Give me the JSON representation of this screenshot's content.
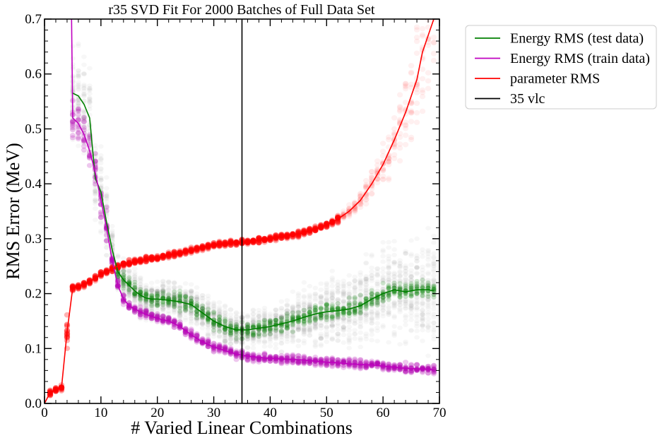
{
  "chart_data": {
    "type": "line",
    "title": "r35 SVD Fit For 2000 Batches of Full Data Set",
    "xlabel": "# Varied Linear Combinations",
    "ylabel": "RMS Error (MeV)",
    "xlim": [
      0,
      70
    ],
    "ylim": [
      0,
      0.7
    ],
    "xticks": [
      0,
      10,
      20,
      30,
      40,
      50,
      60,
      70
    ],
    "yticks": [
      0.0,
      0.1,
      0.2,
      0.3,
      0.4,
      0.5,
      0.6,
      0.7
    ],
    "xtick_labels": [
      "0",
      "10",
      "20",
      "30",
      "40",
      "50",
      "60",
      "70"
    ],
    "ytick_labels": [
      "0.0",
      "0.1",
      "0.2",
      "0.3",
      "0.4",
      "0.5",
      "0.6",
      "0.7"
    ],
    "grid": false,
    "legend_position": "outside-top-right",
    "vline": {
      "x": 35,
      "name": "35 vlc",
      "color": "#000000"
    },
    "series": [
      {
        "name": "Energy RMS (test data)",
        "color": "#008000",
        "x": [
          5,
          6,
          7,
          8,
          9,
          10,
          11,
          12,
          13,
          14,
          15,
          16,
          17,
          18,
          19,
          20,
          22,
          24,
          26,
          28,
          30,
          32,
          34,
          36,
          38,
          40,
          42,
          44,
          46,
          48,
          50,
          52,
          54,
          56,
          58,
          60,
          62,
          64,
          66,
          68,
          69
        ],
        "y": [
          0.565,
          0.56,
          0.545,
          0.52,
          0.41,
          0.385,
          0.33,
          0.28,
          0.24,
          0.225,
          0.215,
          0.205,
          0.197,
          0.192,
          0.19,
          0.19,
          0.188,
          0.185,
          0.18,
          0.165,
          0.15,
          0.14,
          0.134,
          0.134,
          0.137,
          0.14,
          0.145,
          0.15,
          0.157,
          0.163,
          0.167,
          0.169,
          0.172,
          0.178,
          0.19,
          0.2,
          0.207,
          0.203,
          0.207,
          0.207,
          0.205
        ]
      },
      {
        "name": "Energy RMS (train data)",
        "color": "#bf00bf",
        "x": [
          4.8,
          5,
          6,
          7,
          8,
          9,
          10,
          11,
          12,
          13,
          14,
          15,
          16,
          18,
          20,
          22,
          24,
          26,
          28,
          30,
          32,
          34,
          36,
          38,
          40,
          42,
          44,
          46,
          48,
          50,
          52,
          54,
          56,
          58,
          60,
          62,
          64,
          66,
          68,
          69
        ],
        "y": [
          0.7,
          0.52,
          0.51,
          0.49,
          0.46,
          0.42,
          0.37,
          0.32,
          0.26,
          0.215,
          0.19,
          0.178,
          0.172,
          0.162,
          0.155,
          0.15,
          0.14,
          0.125,
          0.112,
          0.103,
          0.096,
          0.09,
          0.086,
          0.084,
          0.082,
          0.081,
          0.08,
          0.079,
          0.077,
          0.075,
          0.074,
          0.072,
          0.071,
          0.07,
          0.068,
          0.066,
          0.064,
          0.063,
          0.062,
          0.061
        ]
      },
      {
        "name": "parameter RMS",
        "color": "#ff0000",
        "x": [
          0,
          1,
          2,
          3,
          4,
          5,
          6,
          7,
          8,
          9,
          10,
          11,
          12,
          13,
          14,
          15,
          16,
          18,
          20,
          22,
          24,
          26,
          28,
          30,
          32,
          34,
          36,
          38,
          40,
          42,
          44,
          46,
          48,
          50,
          52,
          54,
          56,
          58,
          60,
          62,
          64,
          66,
          67,
          68,
          69
        ],
        "y": [
          0.0,
          0.02,
          0.025,
          0.028,
          0.13,
          0.21,
          0.213,
          0.217,
          0.222,
          0.228,
          0.235,
          0.24,
          0.245,
          0.25,
          0.253,
          0.256,
          0.258,
          0.262,
          0.265,
          0.27,
          0.274,
          0.279,
          0.284,
          0.289,
          0.291,
          0.293,
          0.295,
          0.297,
          0.3,
          0.304,
          0.307,
          0.311,
          0.318,
          0.325,
          0.336,
          0.35,
          0.37,
          0.4,
          0.435,
          0.48,
          0.53,
          0.59,
          0.64,
          0.67,
          0.7
        ]
      },
      {
        "name": "35 vlc",
        "color": "#000000",
        "x": [
          35,
          35
        ],
        "y": [
          0,
          0.7
        ]
      }
    ]
  }
}
